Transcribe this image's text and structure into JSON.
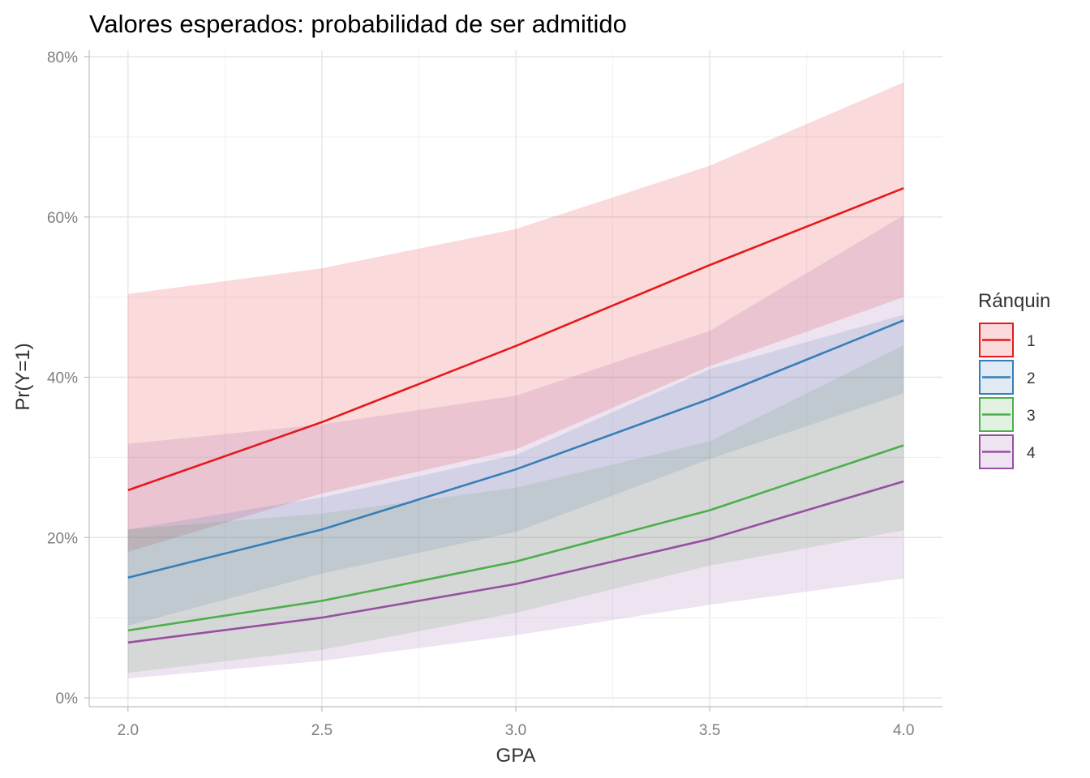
{
  "chart_data": {
    "type": "line",
    "title": "Valores esperados: probabilidad de ser admitido",
    "xlabel": "GPA",
    "ylabel": "Pr(Y=1)",
    "x": [
      2.0,
      2.5,
      3.0,
      3.5,
      4.0
    ],
    "x_tick_labels": [
      "2.0",
      "2.5",
      "3.0",
      "3.5",
      "4.0"
    ],
    "xlim": [
      1.9,
      4.1
    ],
    "ylim": [
      0,
      0.8
    ],
    "y_ticks": [
      0,
      0.2,
      0.4,
      0.6,
      0.8
    ],
    "y_tick_labels": [
      "0%",
      "20%",
      "40%",
      "60%",
      "80%"
    ],
    "grid": true,
    "legend": {
      "title": "Ránquin",
      "position": "right"
    },
    "series": [
      {
        "name": "1",
        "color": "#e41a1c",
        "values": [
          0.259,
          0.344,
          0.439,
          0.54,
          0.636
        ],
        "lower": [
          0.182,
          0.255,
          0.31,
          0.414,
          0.5
        ],
        "upper": [
          0.504,
          0.536,
          0.585,
          0.664,
          0.768
        ]
      },
      {
        "name": "2",
        "color": "#377eb8",
        "values": [
          0.15,
          0.21,
          0.285,
          0.373,
          0.471
        ],
        "lower": [
          0.09,
          0.155,
          0.207,
          0.298,
          0.38
        ],
        "upper": [
          0.21,
          0.25,
          0.303,
          0.41,
          0.478
        ]
      },
      {
        "name": "3",
        "color": "#4daf4a",
        "values": [
          0.084,
          0.121,
          0.17,
          0.234,
          0.315
        ],
        "lower": [
          0.031,
          0.06,
          0.106,
          0.165,
          0.209
        ],
        "upper": [
          0.21,
          0.23,
          0.262,
          0.32,
          0.44
        ]
      },
      {
        "name": "4",
        "color": "#984ea3",
        "values": [
          0.069,
          0.1,
          0.142,
          0.198,
          0.27
        ],
        "lower": [
          0.024,
          0.046,
          0.078,
          0.116,
          0.149
        ],
        "upper": [
          0.317,
          0.341,
          0.377,
          0.458,
          0.602
        ]
      }
    ]
  }
}
